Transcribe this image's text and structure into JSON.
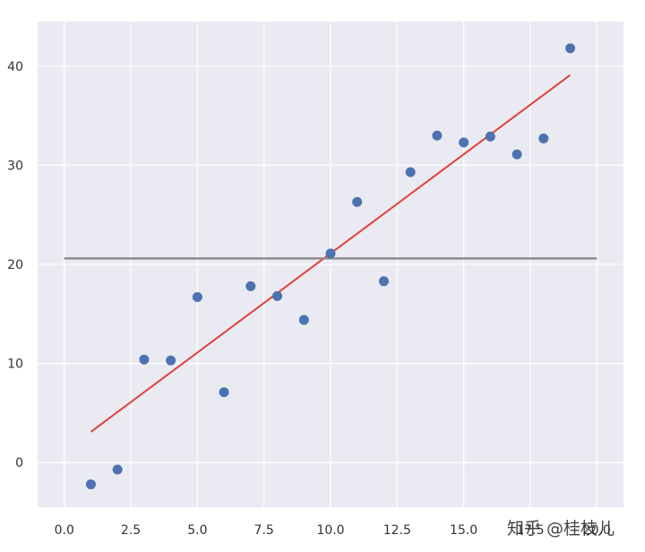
{
  "chart_data": {
    "type": "scatter",
    "title": "",
    "xlabel": "",
    "ylabel": "",
    "xlim": [
      -1,
      21
    ],
    "ylim": [
      -4.5,
      44.5
    ],
    "grid": true,
    "background": "#EAEAF2",
    "x_ticks": [
      "0.0",
      "2.5",
      "5.0",
      "7.5",
      "10.0",
      "12.5",
      "15.0",
      "17.5",
      "20.0"
    ],
    "x_tick_values": [
      0,
      2.5,
      5,
      7.5,
      10,
      12.5,
      15,
      17.5,
      20
    ],
    "y_ticks": [
      "0",
      "10",
      "20",
      "30",
      "40"
    ],
    "y_tick_values": [
      0,
      10,
      20,
      30,
      40
    ],
    "series": [
      {
        "kind": "scatter",
        "color": "#4C72B0",
        "x": [
          1,
          2,
          3,
          4,
          5,
          6,
          7,
          8,
          9,
          10,
          11,
          12,
          13,
          14,
          15,
          16,
          17,
          18,
          19
        ],
        "y": [
          -2.2,
          -0.7,
          10.4,
          10.3,
          16.7,
          7.1,
          17.8,
          16.8,
          14.4,
          21.1,
          26.3,
          18.3,
          29.3,
          33.0,
          32.3,
          32.9,
          31.1,
          32.7,
          41.8
        ]
      },
      {
        "kind": "line",
        "color": "#E0413A",
        "x": [
          1,
          19
        ],
        "y": [
          3.1,
          39.1
        ]
      },
      {
        "kind": "line",
        "color": "#8C8C8C",
        "x": [
          0,
          20
        ],
        "y": [
          20.6,
          20.6
        ]
      }
    ]
  },
  "watermark": "知乎 @桂枝儿"
}
